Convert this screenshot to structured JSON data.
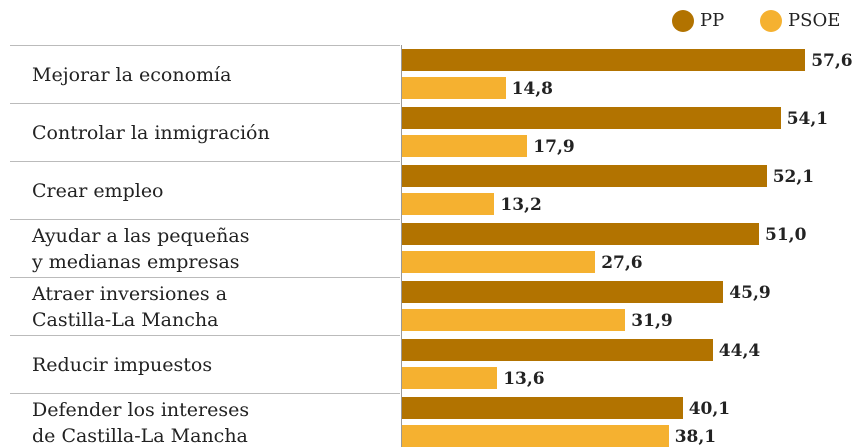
{
  "chart_data": {
    "type": "bar",
    "orientation": "horizontal",
    "categories": [
      "Mejorar la economía",
      "Controlar la inmigración",
      "Crear empleo",
      "Ayudar a las pequeñas\ny medianas empresas",
      "Atraer inversiones a\nCastilla-La Mancha",
      "Reducir impuestos",
      "Defender los intereses\nde Castilla-La Mancha"
    ],
    "series": [
      {
        "name": "PP",
        "color": "#b27300",
        "values": [
          57.6,
          54.1,
          52.1,
          51.0,
          45.9,
          44.4,
          40.1
        ],
        "value_labels": [
          "57,6",
          "54,1",
          "52,1",
          "51,0",
          "45,9",
          "44,4",
          "40,1"
        ]
      },
      {
        "name": "PSOE",
        "color": "#f5b130",
        "values": [
          14.8,
          17.9,
          13.2,
          27.6,
          31.9,
          13.6,
          38.1
        ],
        "value_labels": [
          "14,8",
          "17,9",
          "13,2",
          "27,6",
          "31,9",
          "13,6",
          "38,1"
        ]
      }
    ],
    "xlim": [
      0,
      60
    ]
  }
}
